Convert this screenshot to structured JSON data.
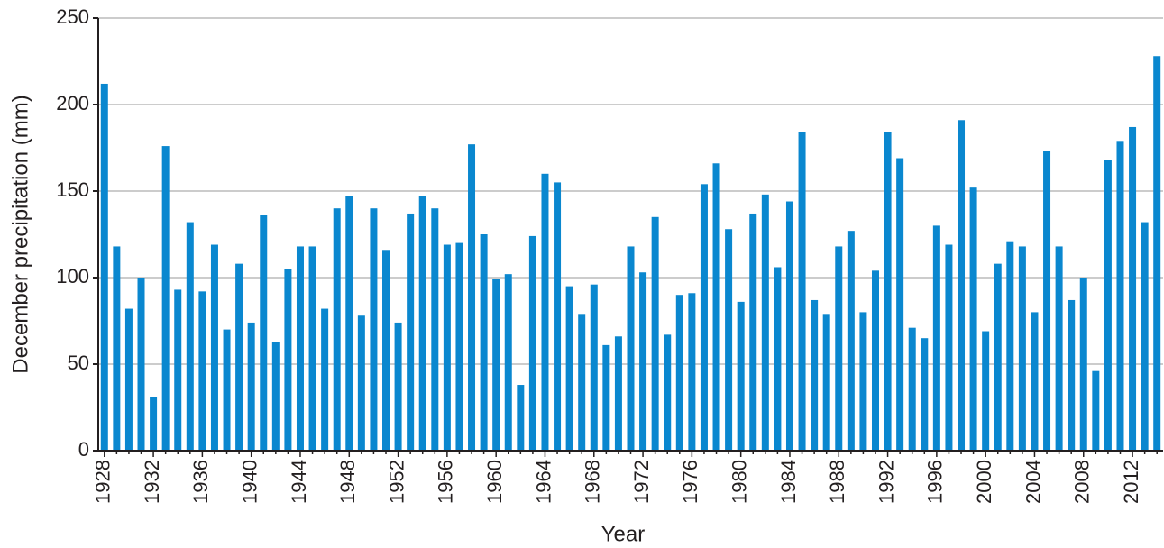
{
  "chart_data": {
    "type": "bar",
    "x_label": "Year",
    "y_label": "December precipitation (mm)",
    "categories": [
      "1928",
      null,
      null,
      null,
      "1932",
      null,
      null,
      null,
      "1936",
      null,
      null,
      null,
      "1940",
      null,
      null,
      null,
      "1944",
      null,
      null,
      null,
      "1948",
      null,
      null,
      null,
      "1952",
      null,
      null,
      null,
      "1956",
      null,
      null,
      null,
      "1960",
      null,
      null,
      null,
      "1964",
      null,
      null,
      null,
      "1968",
      null,
      null,
      null,
      "1972",
      null,
      null,
      null,
      "1976",
      null,
      null,
      null,
      "1980",
      null,
      null,
      null,
      "1984",
      null,
      null,
      null,
      "1988",
      null,
      null,
      null,
      "1992",
      null,
      null,
      null,
      "1996",
      null,
      null,
      null,
      "2000",
      null,
      null,
      null,
      "2004",
      null,
      null,
      null,
      "2008",
      null,
      null,
      null,
      "2012",
      null,
      null
    ],
    "values": [
      212,
      118,
      82,
      100,
      31,
      176,
      93,
      132,
      92,
      119,
      70,
      108,
      74,
      136,
      63,
      105,
      118,
      118,
      82,
      140,
      147,
      78,
      140,
      116,
      74,
      137,
      147,
      140,
      119,
      120,
      177,
      125,
      99,
      102,
      38,
      124,
      160,
      155,
      95,
      79,
      96,
      61,
      66,
      118,
      103,
      135,
      67,
      90,
      91,
      154,
      166,
      128,
      86,
      137,
      148,
      106,
      144,
      184,
      87,
      79,
      118,
      127,
      80,
      104,
      184,
      169,
      71,
      65,
      130,
      119,
      191,
      152,
      69,
      108,
      121,
      118,
      80,
      173,
      118,
      87,
      100,
      46,
      168,
      179,
      187,
      132,
      228
    ],
    "color": "#0a87cf",
    "ylim": [
      0,
      250
    ],
    "yticks": [
      0,
      50,
      100,
      150,
      200,
      250
    ],
    "grid": true
  }
}
